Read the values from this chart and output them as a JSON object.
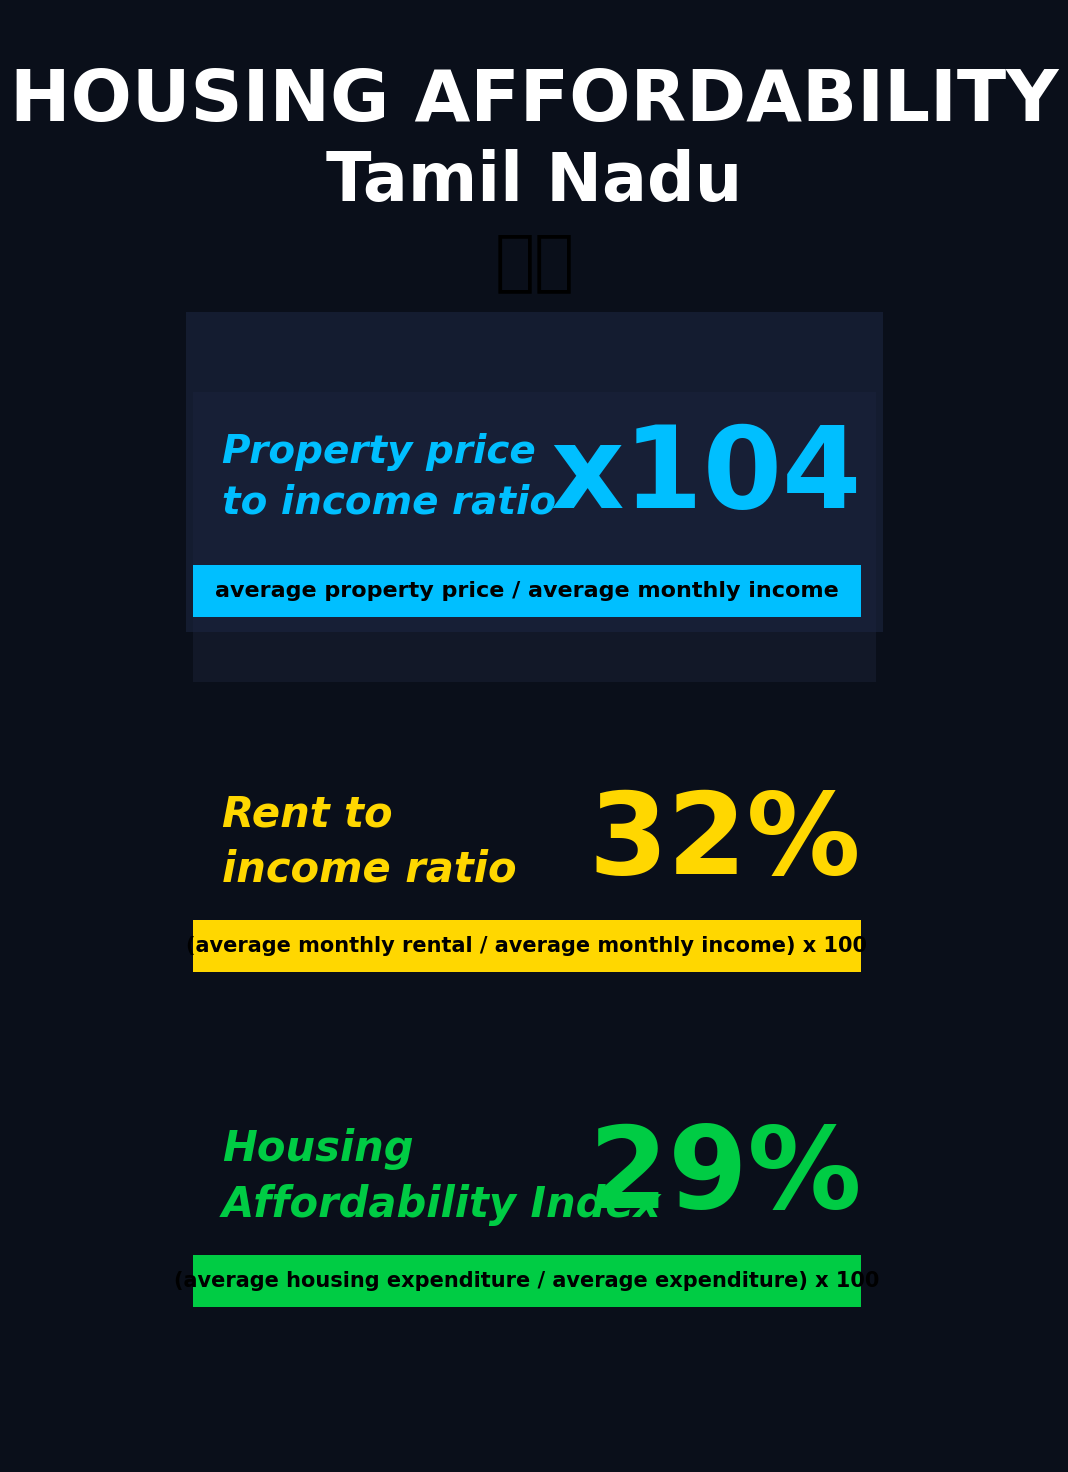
{
  "title_line1": "HOUSING AFFORDABILITY",
  "title_line2": "Tamil Nadu",
  "flag_emoji": "🇮🇳",
  "section1_label": "Property price\nto income ratio",
  "section1_value": "x104",
  "section1_label_color": "#00BFFF",
  "section1_value_color": "#00BFFF",
  "section1_banner": "average property price / average monthly income",
  "section1_banner_bg": "#00BFFF",
  "section2_label": "Rent to\nincome ratio",
  "section2_value": "32%",
  "section2_label_color": "#FFD700",
  "section2_value_color": "#FFD700",
  "section2_banner": "(average monthly rental / average monthly income) x 100",
  "section2_banner_bg": "#FFD700",
  "section3_label": "Housing\nAffordability Index",
  "section3_value": "29%",
  "section3_label_color": "#00CC44",
  "section3_value_color": "#00CC44",
  "section3_banner": "(average housing expenditure / average expenditure) x 100",
  "section3_banner_bg": "#00CC44",
  "bg_color": "#0a0f1a",
  "title_color": "#FFFFFF",
  "banner_text_color": "#000000"
}
